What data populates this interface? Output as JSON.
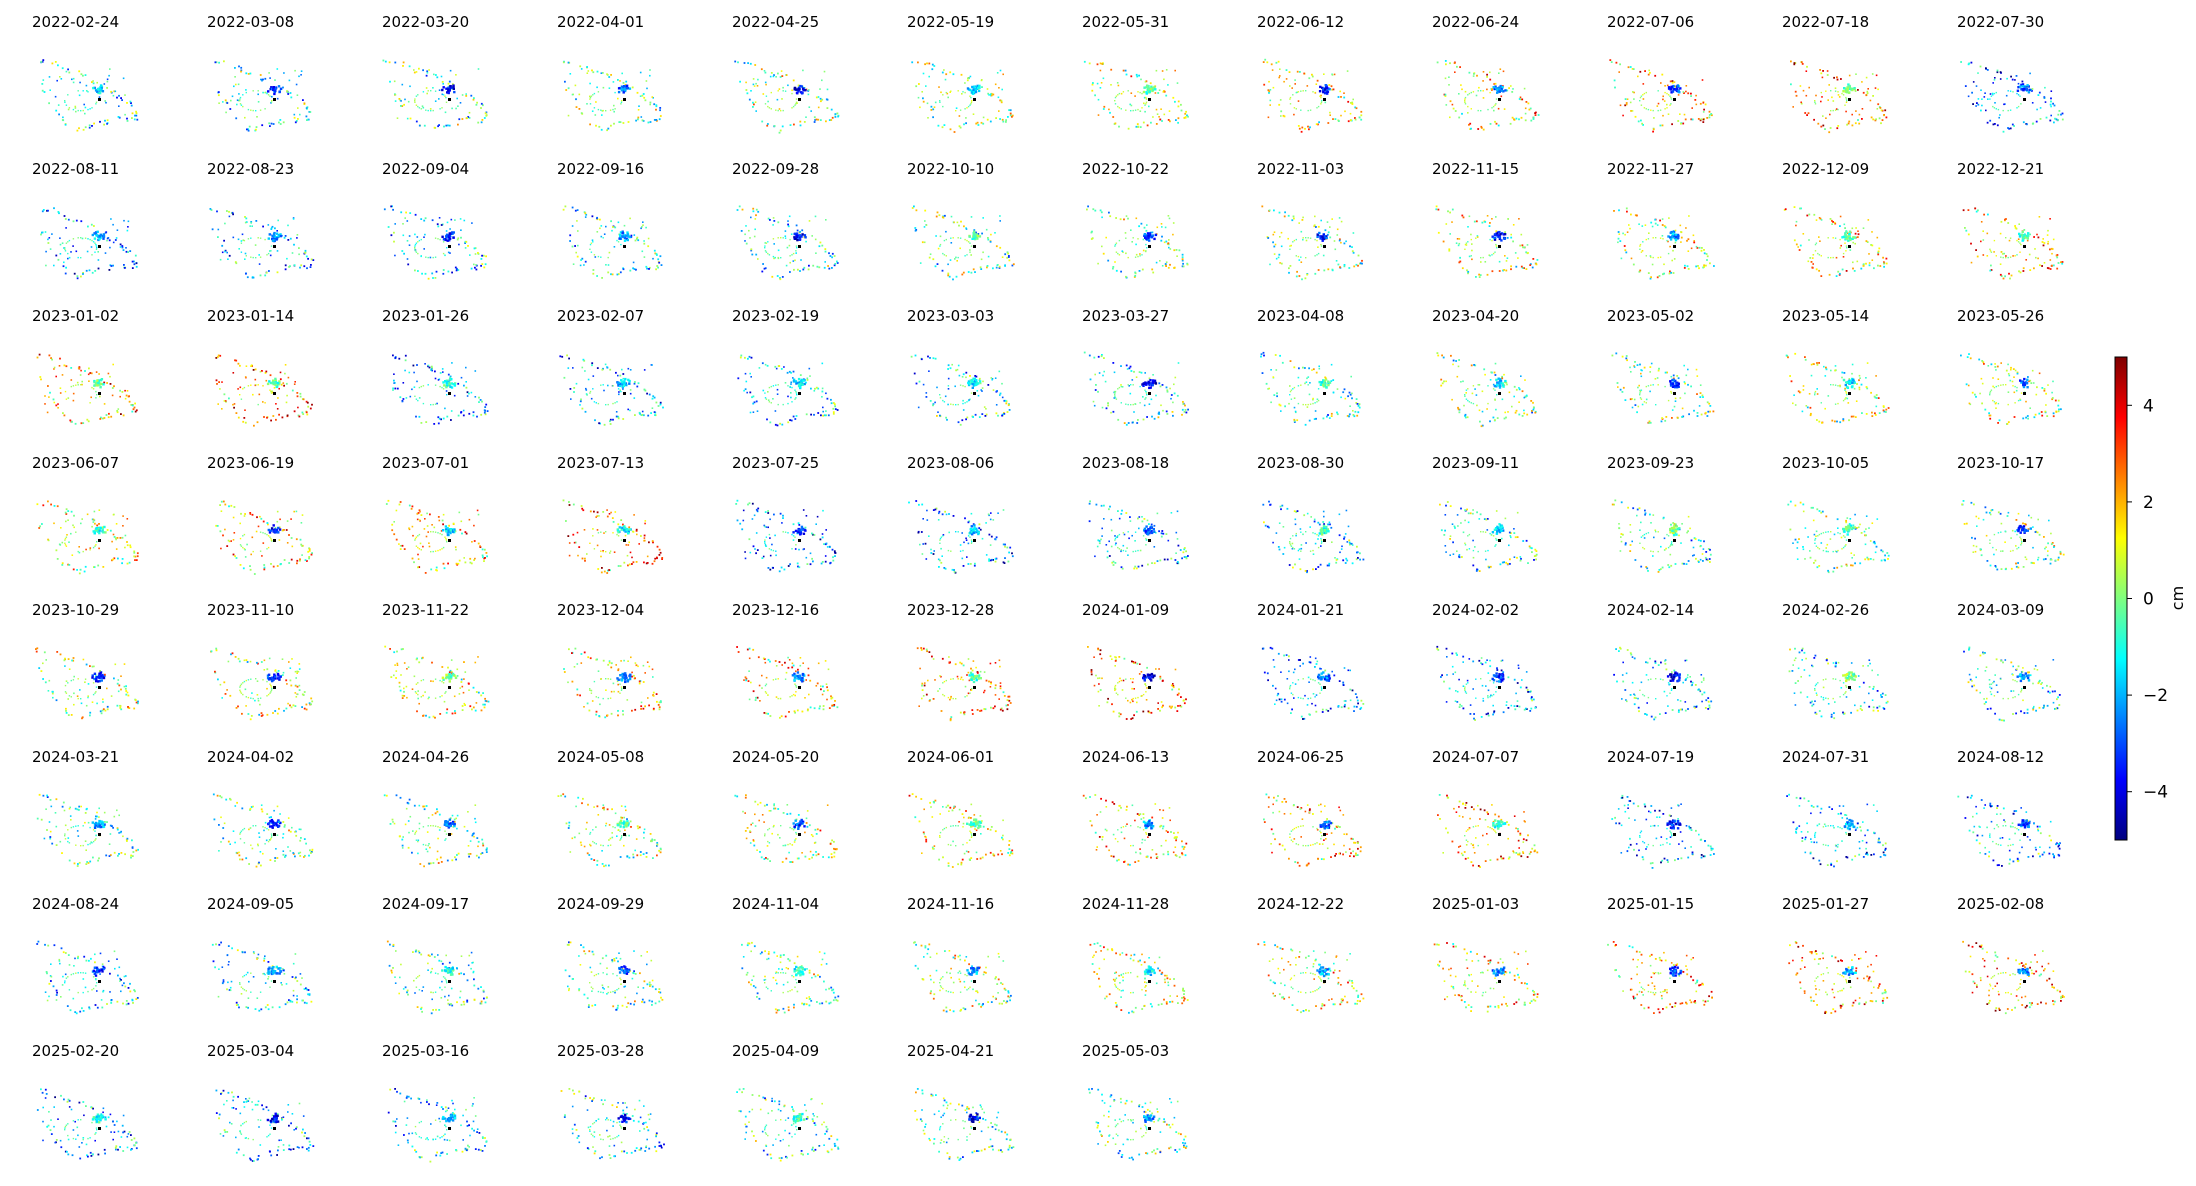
{
  "chart_data": {
    "type": "scatter",
    "layout": "small-multiples",
    "grid": false,
    "panel_titles": [
      "2022-02-24",
      "2022-03-08",
      "2022-03-20",
      "2022-04-01",
      "2022-04-25",
      "2022-05-19",
      "2022-05-31",
      "2022-06-12",
      "2022-06-24",
      "2022-07-06",
      "2022-07-18",
      "2022-07-30",
      "2022-08-11",
      "2022-08-23",
      "2022-09-04",
      "2022-09-16",
      "2022-09-28",
      "2022-10-10",
      "2022-10-22",
      "2022-11-03",
      "2022-11-15",
      "2022-11-27",
      "2022-12-09",
      "2022-12-21",
      "2023-01-02",
      "2023-01-14",
      "2023-01-26",
      "2023-02-07",
      "2023-02-19",
      "2023-03-03",
      "2023-03-27",
      "2023-04-08",
      "2023-04-20",
      "2023-05-02",
      "2023-05-14",
      "2023-05-26",
      "2023-06-07",
      "2023-06-19",
      "2023-07-01",
      "2023-07-13",
      "2023-07-25",
      "2023-08-06",
      "2023-08-18",
      "2023-08-30",
      "2023-09-11",
      "2023-09-23",
      "2023-10-05",
      "2023-10-17",
      "2023-10-29",
      "2023-11-10",
      "2023-11-22",
      "2023-12-04",
      "2023-12-16",
      "2023-12-28",
      "2024-01-09",
      "2024-01-21",
      "2024-02-02",
      "2024-02-14",
      "2024-02-26",
      "2024-03-09",
      "2024-03-21",
      "2024-04-02",
      "2024-04-26",
      "2024-05-08",
      "2024-05-20",
      "2024-06-01",
      "2024-06-13",
      "2024-06-25",
      "2024-07-07",
      "2024-07-19",
      "2024-07-31",
      "2024-08-12",
      "2024-08-24",
      "2024-09-05",
      "2024-09-17",
      "2024-09-29",
      "2024-11-04",
      "2024-11-16",
      "2024-11-28",
      "2024-12-22",
      "2025-01-03",
      "2025-01-15",
      "2025-01-27",
      "2025-02-08",
      "2025-02-20",
      "2025-03-04",
      "2025-03-16",
      "2025-03-28",
      "2025-04-09",
      "2025-04-21",
      "2025-05-03"
    ],
    "colorbar": {
      "label": "cm",
      "colormap": "jet",
      "range": [
        -5,
        5
      ],
      "ticks": [
        -4,
        -2,
        0,
        2,
        4
      ],
      "tick_labels": [
        "−4",
        "−2",
        "0",
        "2",
        "4"
      ]
    }
  }
}
